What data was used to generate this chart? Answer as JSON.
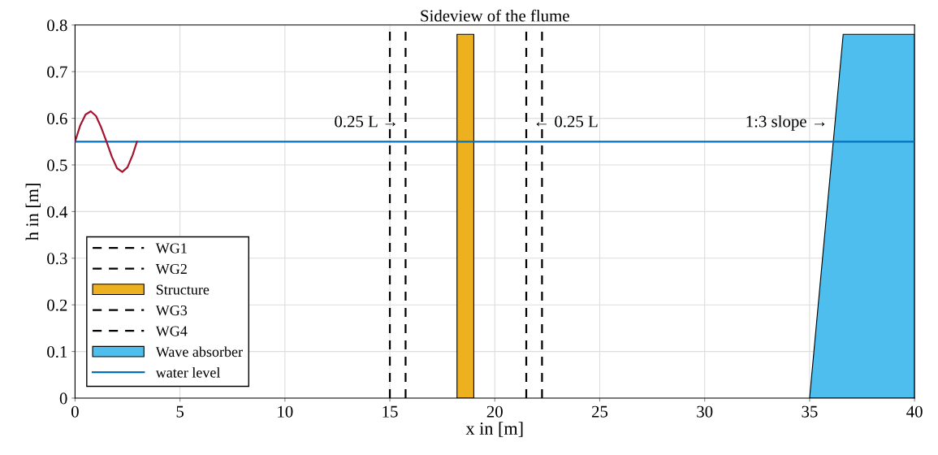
{
  "chart_data": {
    "type": "line",
    "title": "Sideview of the flume",
    "xlabel": "x in [m]",
    "ylabel": "h in [m]",
    "xlim": [
      0,
      40
    ],
    "ylim": [
      0,
      0.8
    ],
    "xticks": [
      0,
      5,
      10,
      15,
      20,
      25,
      30,
      35,
      40
    ],
    "yticks": [
      0,
      0.1,
      0.2,
      0.3,
      0.4,
      0.5,
      0.6,
      0.7,
      0.8
    ],
    "grid": true,
    "legend": "bottom left",
    "series": [
      {
        "name": "WG1",
        "line_style": "dashed",
        "color": "#000000",
        "x": [
          15,
          15
        ],
        "values": [
          0,
          0.8
        ]
      },
      {
        "name": "WG2",
        "line_style": "dashed",
        "color": "#000000",
        "x": [
          15.75,
          15.75
        ],
        "values": [
          0,
          0.8
        ]
      },
      {
        "name": "Structure",
        "type": "area",
        "color": "#edb120",
        "x": [
          18.2,
          18.2,
          19,
          19
        ],
        "values": [
          0,
          0.78,
          0.78,
          0
        ]
      },
      {
        "name": "WG3",
        "line_style": "dashed",
        "color": "#000000",
        "x": [
          21.5,
          21.5
        ],
        "values": [
          0,
          0.8
        ]
      },
      {
        "name": "WG4",
        "line_style": "dashed",
        "color": "#000000",
        "x": [
          22.25,
          22.25
        ],
        "values": [
          0,
          0.8
        ]
      },
      {
        "name": "Wave absorber",
        "type": "area",
        "color": "#4dbeee",
        "x": [
          35,
          36.6,
          40,
          40
        ],
        "values": [
          0,
          0.78,
          0.78,
          0
        ]
      },
      {
        "name": "water level",
        "line_style": "solid",
        "color": "#0072bd",
        "x": [
          0,
          40
        ],
        "values": [
          0.55,
          0.55
        ]
      },
      {
        "line_style": "solid",
        "color": "#a2142f",
        "x": [
          0,
          0.25,
          0.5,
          0.75,
          1.0,
          1.25,
          1.5,
          1.75,
          2.0,
          2.25,
          2.5,
          2.75,
          2.95
        ],
        "values": [
          0.55,
          0.585,
          0.608,
          0.615,
          0.605,
          0.58,
          0.55,
          0.518,
          0.493,
          0.485,
          0.495,
          0.522,
          0.55
        ]
      }
    ],
    "annotations": [
      {
        "text": "0.25 L →",
        "x": 15.75,
        "y": 0.59
      },
      {
        "text": "← 0.25 L",
        "x": 21.5,
        "y": 0.59
      },
      {
        "text": "1:3 slope →",
        "x": 36.2,
        "y": 0.59
      }
    ]
  }
}
